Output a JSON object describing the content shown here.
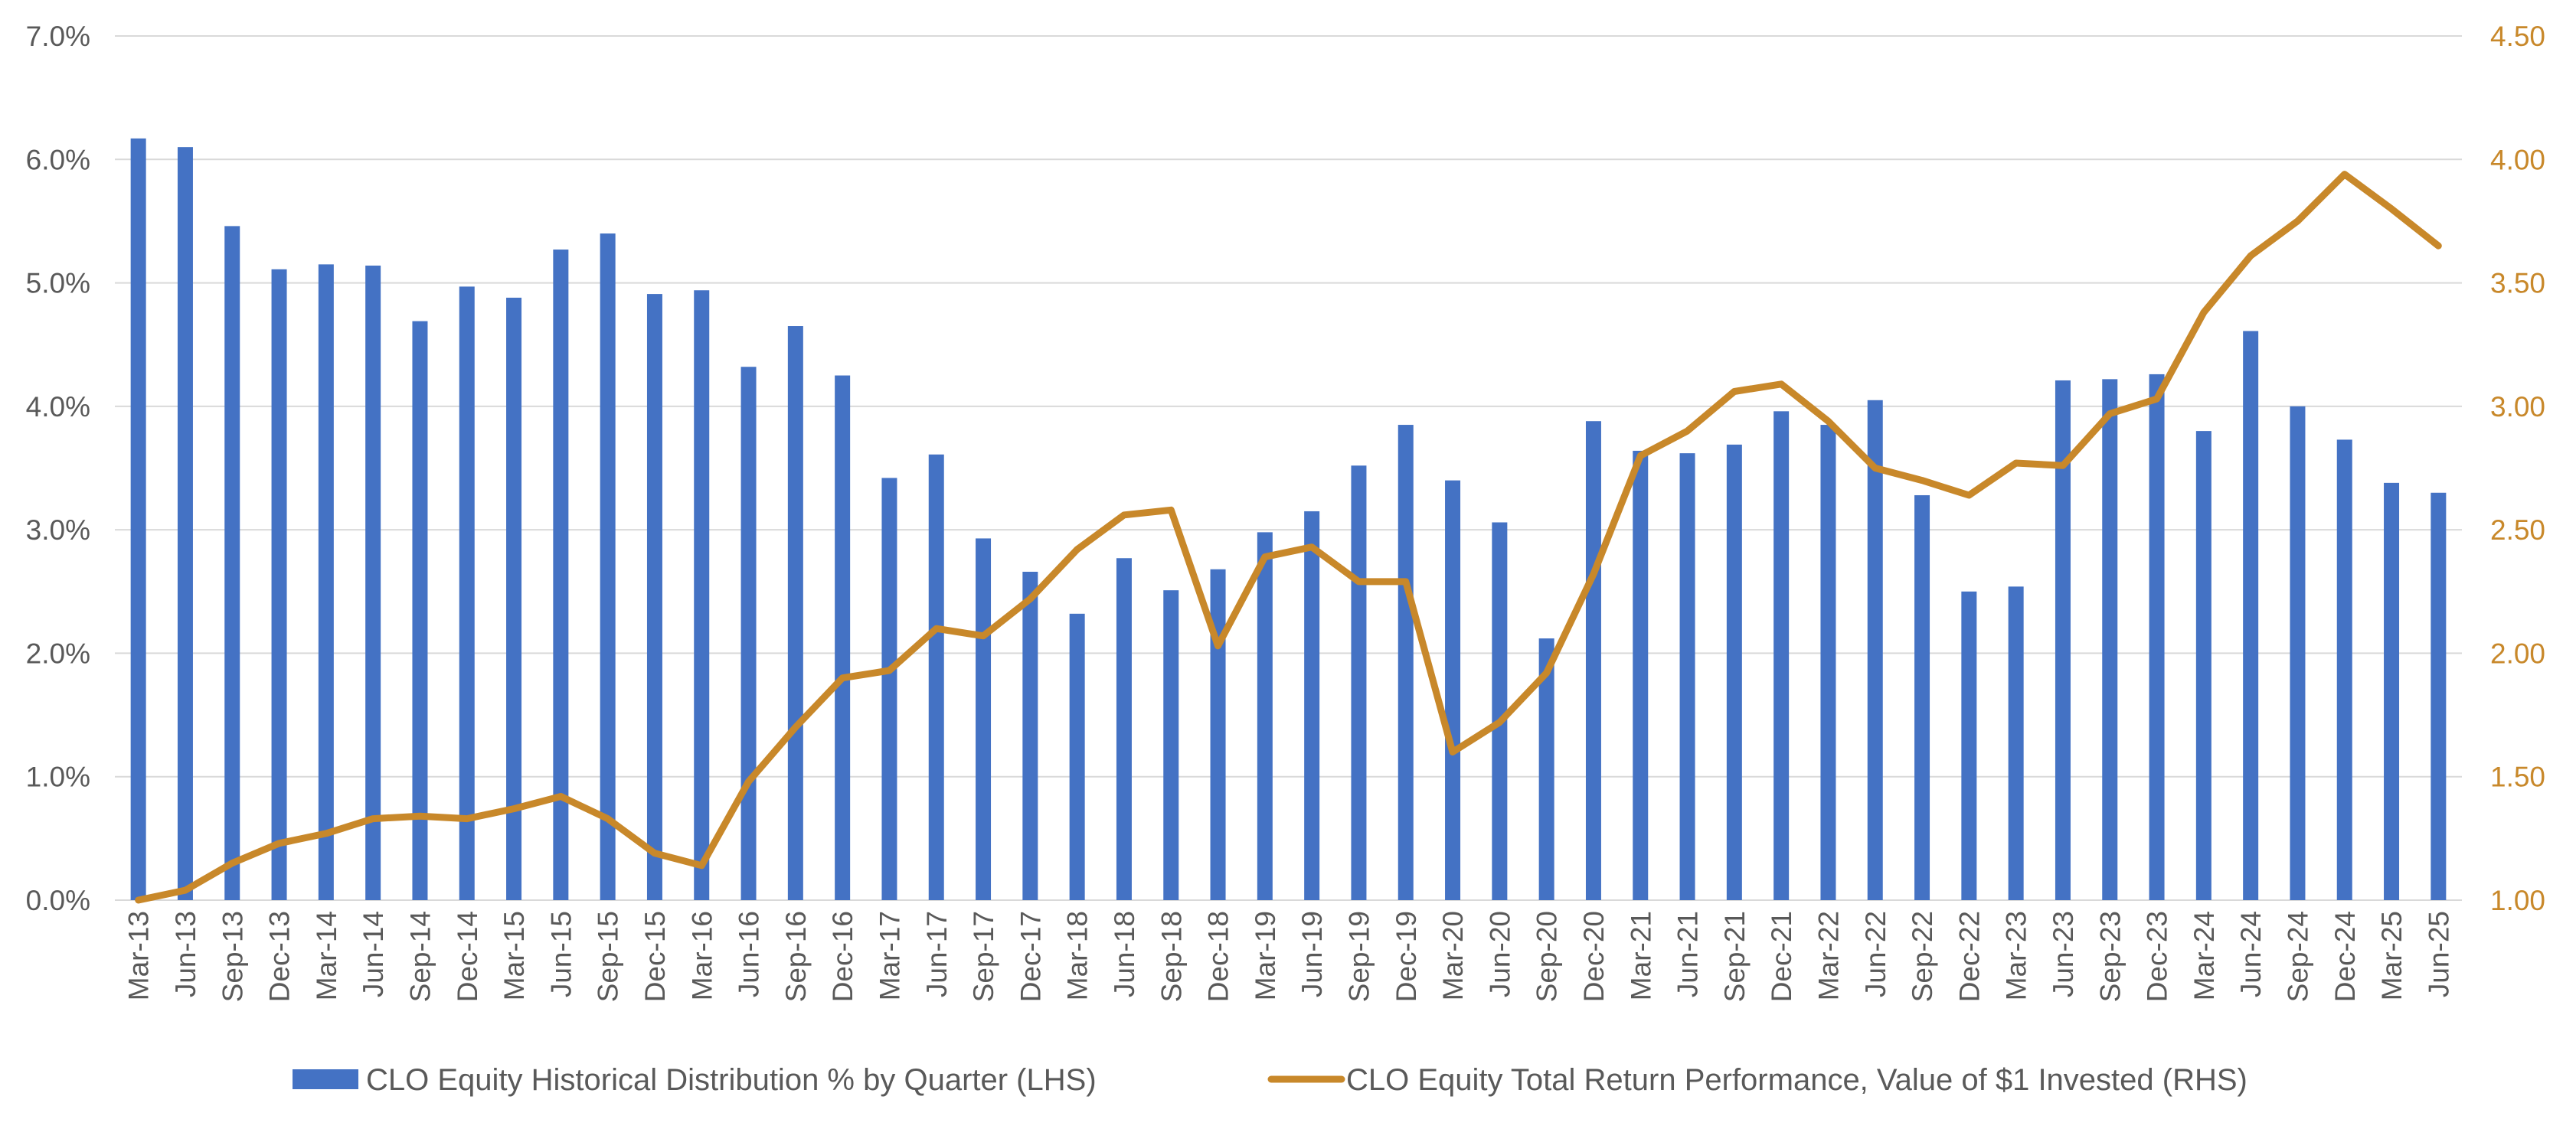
{
  "chart_data": {
    "type": "bar+line",
    "colors": {
      "bars": "#4472c4",
      "line": "#c8882a",
      "grid": "#d9d9d9",
      "text": "#595959"
    },
    "categories": [
      "Mar-13",
      "Jun-13",
      "Sep-13",
      "Dec-13",
      "Mar-14",
      "Jun-14",
      "Sep-14",
      "Dec-14",
      "Mar-15",
      "Jun-15",
      "Sep-15",
      "Dec-15",
      "Mar-16",
      "Jun-16",
      "Sep-16",
      "Dec-16",
      "Mar-17",
      "Jun-17",
      "Sep-17",
      "Dec-17",
      "Mar-18",
      "Jun-18",
      "Sep-18",
      "Dec-18",
      "Mar-19",
      "Jun-19",
      "Sep-19",
      "Dec-19",
      "Mar-20",
      "Jun-20",
      "Sep-20",
      "Dec-20",
      "Mar-21",
      "Jun-21",
      "Sep-21",
      "Dec-21",
      "Mar-22",
      "Jun-22",
      "Sep-22",
      "Dec-22",
      "Mar-23",
      "Jun-23",
      "Sep-23",
      "Dec-23",
      "Mar-24",
      "Jun-24",
      "Sep-24",
      "Dec-24",
      "Mar-25",
      "Jun-25"
    ],
    "series": [
      {
        "name": "CLO Equity Historical Distribution % by Quarter (LHS)",
        "type": "bar",
        "axis": "left",
        "values": [
          6.17,
          6.1,
          5.46,
          5.11,
          5.15,
          5.14,
          4.69,
          4.97,
          4.88,
          5.27,
          5.4,
          4.91,
          4.94,
          4.32,
          4.65,
          4.25,
          3.42,
          3.61,
          2.93,
          2.66,
          2.32,
          2.77,
          2.51,
          2.68,
          2.98,
          3.15,
          3.52,
          3.85,
          3.4,
          3.06,
          2.12,
          3.88,
          3.64,
          3.62,
          3.69,
          3.96,
          3.85,
          4.05,
          3.28,
          2.5,
          2.54,
          4.21,
          4.22,
          4.26,
          3.8,
          4.61,
          4.0,
          3.73,
          3.38,
          3.3
        ]
      },
      {
        "name": "CLO Equity Total Return Performance, Value of $1 Invested (RHS)",
        "type": "line",
        "axis": "right",
        "values": [
          1.0,
          1.04,
          1.15,
          1.23,
          1.27,
          1.33,
          1.34,
          1.33,
          1.37,
          1.42,
          1.33,
          1.19,
          1.14,
          1.48,
          1.7,
          1.9,
          1.93,
          2.1,
          2.07,
          2.22,
          2.42,
          2.56,
          2.58,
          2.03,
          2.39,
          2.43,
          2.29,
          2.29,
          1.6,
          1.72,
          1.92,
          2.32,
          2.8,
          2.9,
          3.06,
          3.09,
          2.94,
          2.75,
          2.7,
          2.64,
          2.77,
          2.76,
          2.97,
          3.03,
          3.38,
          3.61,
          3.75,
          3.94,
          3.8,
          3.65
        ]
      }
    ],
    "y_left": {
      "min": 0,
      "max": 7,
      "step": 1,
      "tick_labels": [
        "0.0%",
        "1.0%",
        "2.0%",
        "3.0%",
        "4.0%",
        "5.0%",
        "6.0%",
        "7.0%"
      ]
    },
    "y_right": {
      "min": 1.0,
      "max": 4.5,
      "step": 0.5,
      "tick_labels": [
        "1.00",
        "1.50",
        "2.00",
        "2.50",
        "3.00",
        "3.50",
        "4.00",
        "4.50"
      ]
    },
    "legend_position": "bottom",
    "grid": true
  }
}
